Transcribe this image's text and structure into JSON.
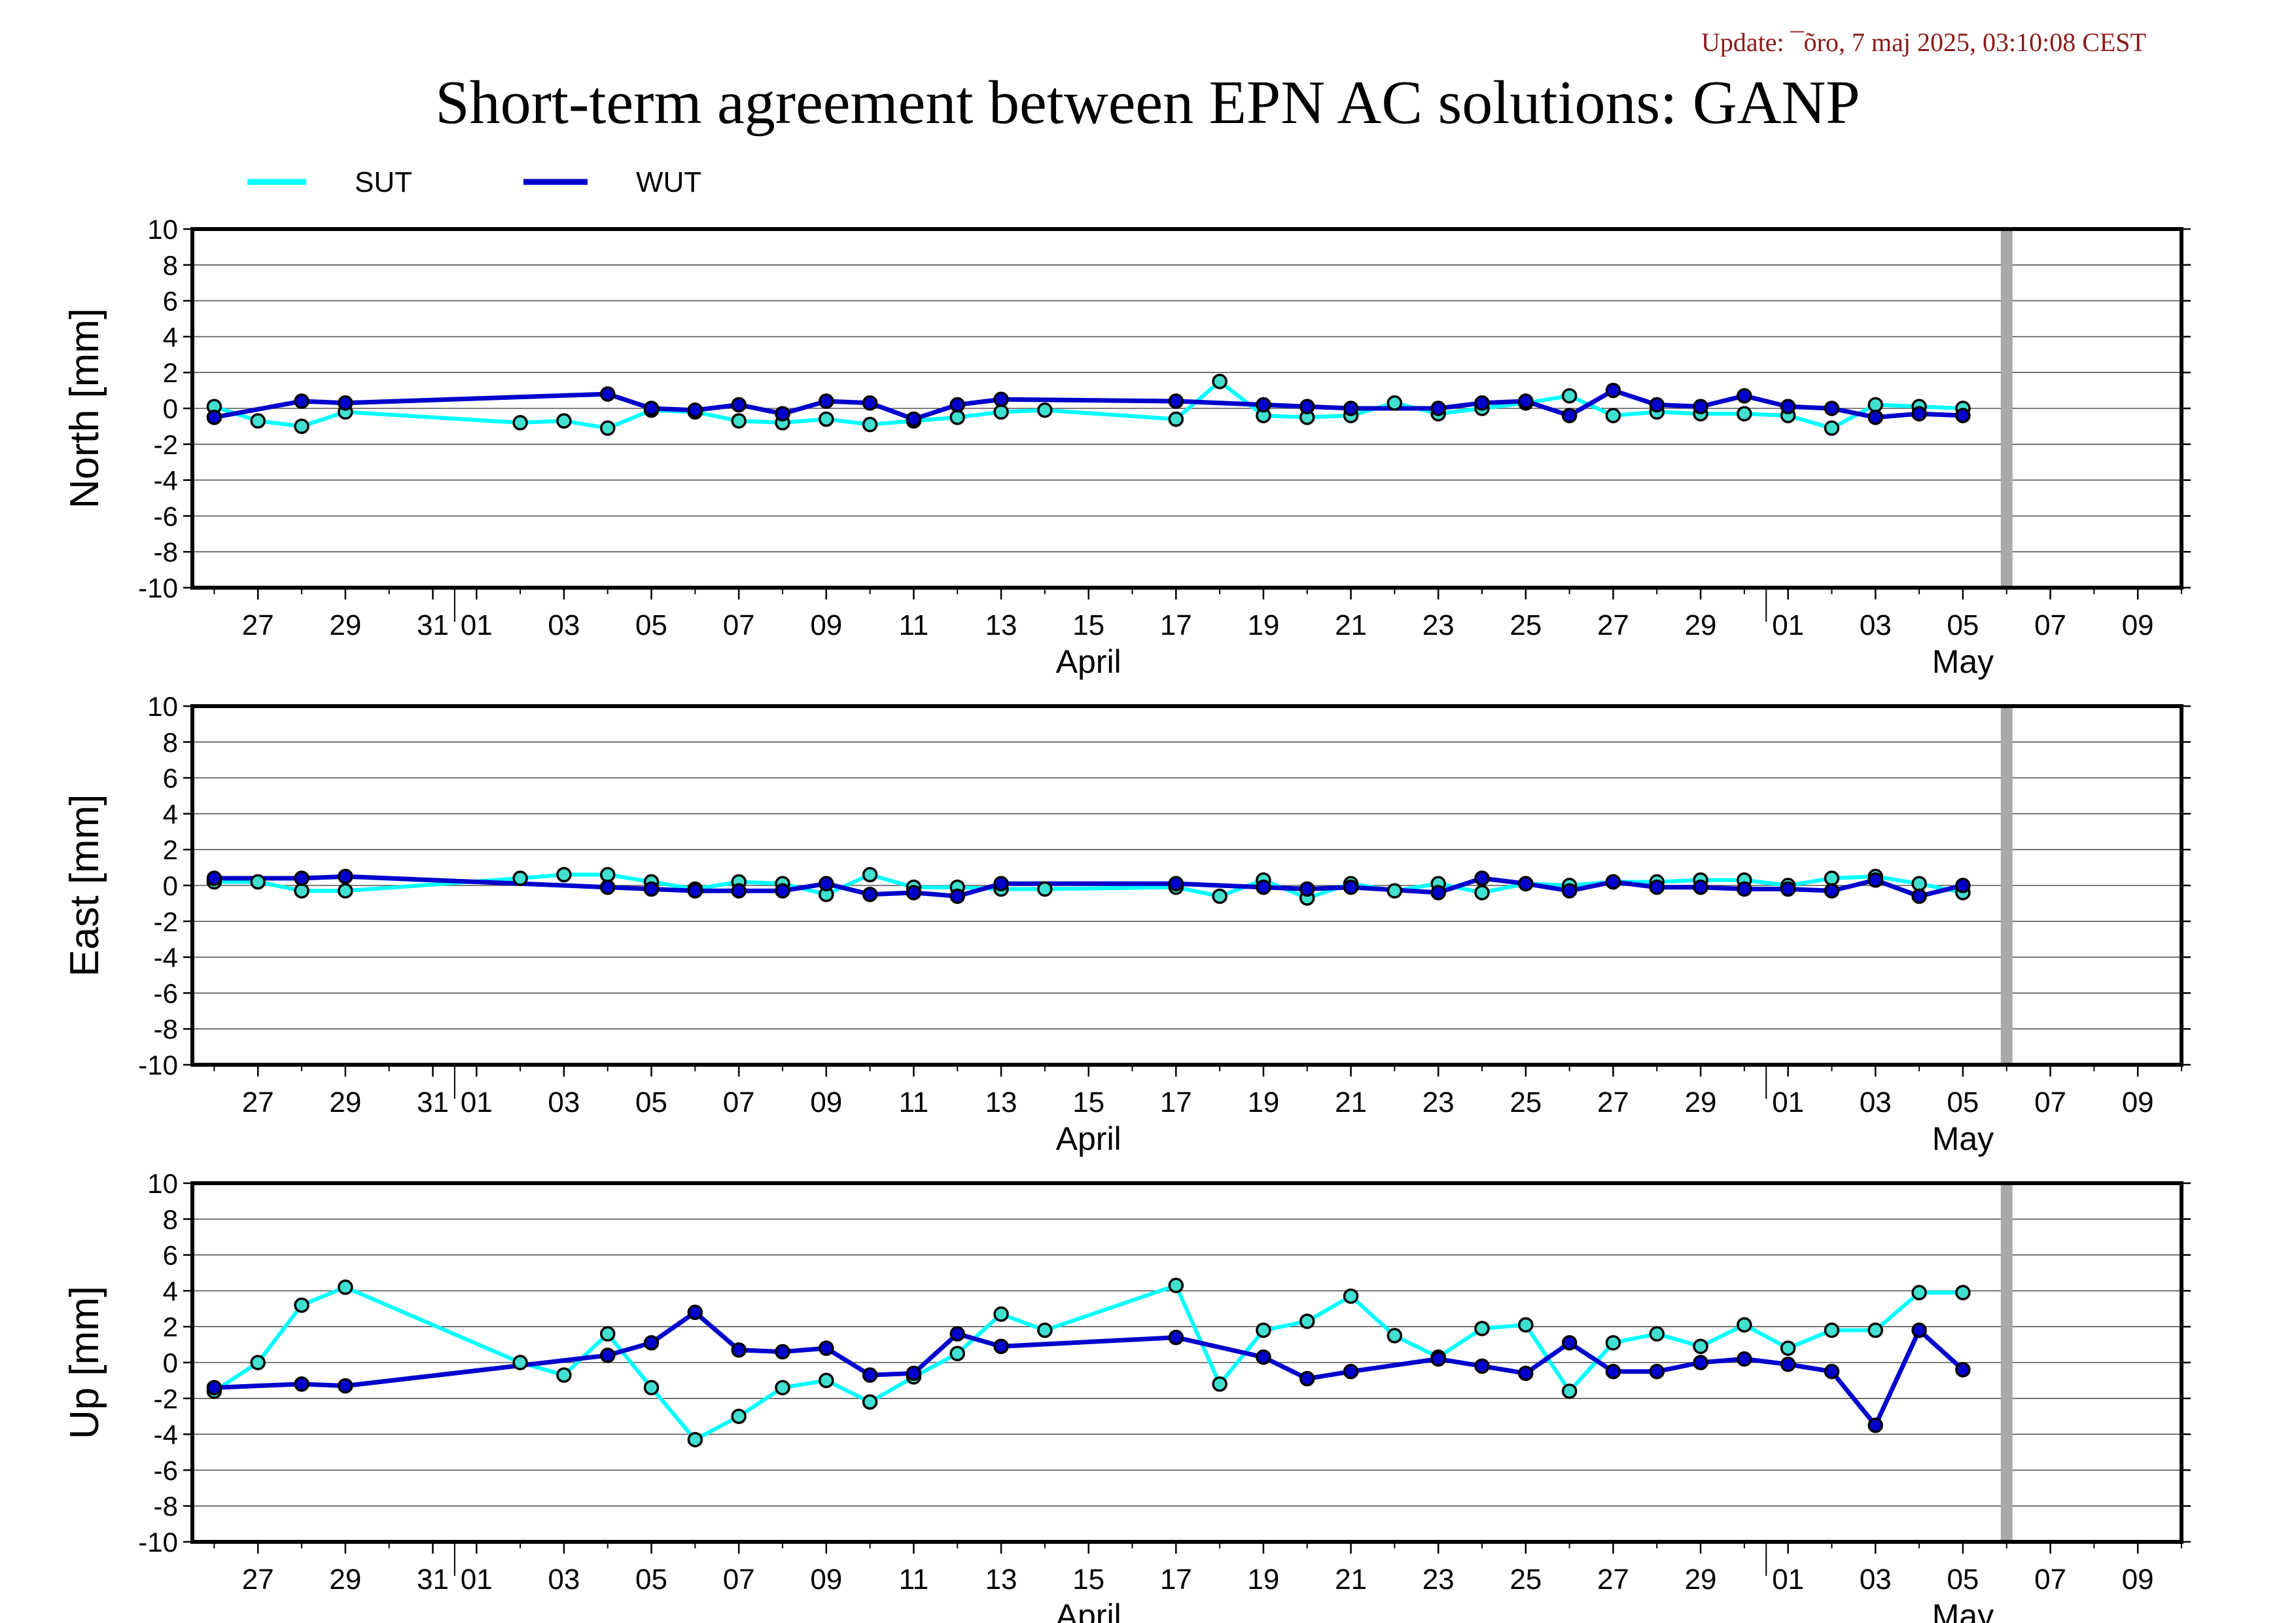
{
  "update": "Update: ¯õro, 7 maj 2025, 03:10:08 CEST",
  "title": "Short-term agreement between EPN AC solutions: GANP",
  "colors": {
    "SUT": "#00ffff",
    "WUT": "#0000cd",
    "marker_fill": "#40e0d0",
    "current_day_bar": "#a9a9a9"
  },
  "chart_data": [
    {
      "type": "line",
      "ylabel": "North [mm]",
      "ylim": [
        -10,
        10
      ],
      "yticks": [
        10,
        8,
        6,
        4,
        2,
        0,
        -2,
        -4,
        -6,
        -8,
        -10
      ],
      "xlim": [
        "2025-03-25T12:00",
        "2025-05-10"
      ],
      "xtick_labels": [
        "27",
        "29",
        "31",
        "01",
        "03",
        "05",
        "07",
        "09",
        "11",
        "13",
        "15",
        "17",
        "19",
        "21",
        "23",
        "25",
        "27",
        "29",
        "01",
        "03",
        "05",
        "07",
        "09"
      ],
      "month_labels": [
        "April",
        "May"
      ],
      "grid": true,
      "current_day": "2025-05-06",
      "series": [
        {
          "name": "SUT",
          "x": [
            "2025-03-26",
            "2025-03-27",
            "2025-03-28",
            "2025-03-29",
            "2025-04-02",
            "2025-04-03",
            "2025-04-04",
            "2025-04-05",
            "2025-04-06",
            "2025-04-07",
            "2025-04-08",
            "2025-04-09",
            "2025-04-10",
            "2025-04-11",
            "2025-04-12",
            "2025-04-13",
            "2025-04-14",
            "2025-04-17",
            "2025-04-18",
            "2025-04-19",
            "2025-04-20",
            "2025-04-21",
            "2025-04-22",
            "2025-04-23",
            "2025-04-24",
            "2025-04-25",
            "2025-04-26",
            "2025-04-27",
            "2025-04-28",
            "2025-04-29",
            "2025-04-30",
            "2025-05-01",
            "2025-05-02",
            "2025-05-03",
            "2025-05-04",
            "2025-05-05"
          ],
          "y": [
            0.1,
            -0.7,
            -1.0,
            -0.2,
            -0.8,
            -0.7,
            -1.1,
            -0.1,
            -0.2,
            -0.7,
            -0.8,
            -0.6,
            -0.9,
            -0.7,
            -0.5,
            -0.2,
            -0.1,
            -0.6,
            1.5,
            -0.4,
            -0.5,
            -0.4,
            0.3,
            -0.3,
            0.0,
            0.3,
            0.7,
            -0.4,
            -0.2,
            -0.3,
            -0.3,
            -0.4,
            -1.1,
            0.2,
            0.1,
            0.0
          ]
        },
        {
          "name": "WUT",
          "x": [
            "2025-03-26",
            "2025-03-28",
            "2025-03-29",
            "2025-04-04",
            "2025-04-05",
            "2025-04-06",
            "2025-04-07",
            "2025-04-08",
            "2025-04-09",
            "2025-04-10",
            "2025-04-11",
            "2025-04-12",
            "2025-04-13",
            "2025-04-17",
            "2025-04-19",
            "2025-04-20",
            "2025-04-21",
            "2025-04-23",
            "2025-04-24",
            "2025-04-25",
            "2025-04-26",
            "2025-04-27",
            "2025-04-28",
            "2025-04-29",
            "2025-04-30",
            "2025-05-01",
            "2025-05-02",
            "2025-05-03",
            "2025-05-04",
            "2025-05-05"
          ],
          "y": [
            -0.5,
            0.4,
            0.3,
            0.8,
            0.0,
            -0.1,
            0.2,
            -0.3,
            0.4,
            0.3,
            -0.6,
            0.2,
            0.5,
            0.4,
            0.2,
            0.1,
            0.0,
            0.0,
            0.3,
            0.4,
            -0.4,
            1.0,
            0.2,
            0.1,
            0.7,
            0.1,
            0.0,
            -0.5,
            -0.3,
            -0.4
          ]
        }
      ]
    },
    {
      "type": "line",
      "ylabel": "East [mm]",
      "ylim": [
        -10,
        10
      ],
      "yticks": [
        10,
        8,
        6,
        4,
        2,
        0,
        -2,
        -4,
        -6,
        -8,
        -10
      ],
      "xlim": [
        "2025-03-25T12:00",
        "2025-05-10"
      ],
      "xtick_labels": [
        "27",
        "29",
        "31",
        "01",
        "03",
        "05",
        "07",
        "09",
        "11",
        "13",
        "15",
        "17",
        "19",
        "21",
        "23",
        "25",
        "27",
        "29",
        "01",
        "03",
        "05",
        "07",
        "09"
      ],
      "month_labels": [
        "April",
        "May"
      ],
      "grid": true,
      "current_day": "2025-05-06",
      "series": [
        {
          "name": "SUT",
          "x": [
            "2025-03-26",
            "2025-03-27",
            "2025-03-28",
            "2025-03-29",
            "2025-04-02",
            "2025-04-03",
            "2025-04-04",
            "2025-04-05",
            "2025-04-06",
            "2025-04-07",
            "2025-04-08",
            "2025-04-09",
            "2025-04-10",
            "2025-04-11",
            "2025-04-12",
            "2025-04-13",
            "2025-04-14",
            "2025-04-17",
            "2025-04-18",
            "2025-04-19",
            "2025-04-20",
            "2025-04-21",
            "2025-04-22",
            "2025-04-23",
            "2025-04-24",
            "2025-04-25",
            "2025-04-26",
            "2025-04-27",
            "2025-04-28",
            "2025-04-29",
            "2025-04-30",
            "2025-05-01",
            "2025-05-02",
            "2025-05-03",
            "2025-05-04",
            "2025-05-05"
          ],
          "y": [
            0.2,
            0.2,
            -0.3,
            -0.3,
            0.4,
            0.6,
            0.6,
            0.2,
            -0.2,
            0.2,
            0.1,
            -0.5,
            0.6,
            -0.1,
            -0.1,
            -0.2,
            -0.2,
            -0.1,
            -0.6,
            0.3,
            -0.7,
            0.1,
            -0.3,
            0.1,
            -0.4,
            0.1,
            0.0,
            0.2,
            0.2,
            0.3,
            0.3,
            0.0,
            0.4,
            0.5,
            0.1,
            -0.4
          ]
        },
        {
          "name": "WUT",
          "x": [
            "2025-03-26",
            "2025-03-28",
            "2025-03-29",
            "2025-04-04",
            "2025-04-05",
            "2025-04-06",
            "2025-04-07",
            "2025-04-08",
            "2025-04-09",
            "2025-04-10",
            "2025-04-11",
            "2025-04-12",
            "2025-04-13",
            "2025-04-17",
            "2025-04-19",
            "2025-04-20",
            "2025-04-21",
            "2025-04-23",
            "2025-04-24",
            "2025-04-25",
            "2025-04-26",
            "2025-04-27",
            "2025-04-28",
            "2025-04-29",
            "2025-04-30",
            "2025-05-01",
            "2025-05-02",
            "2025-05-03",
            "2025-05-04",
            "2025-05-05"
          ],
          "y": [
            0.4,
            0.4,
            0.5,
            -0.1,
            -0.2,
            -0.3,
            -0.3,
            -0.3,
            0.1,
            -0.5,
            -0.4,
            -0.6,
            0.1,
            0.1,
            -0.1,
            -0.2,
            -0.1,
            -0.4,
            0.4,
            0.1,
            -0.3,
            0.2,
            -0.1,
            -0.1,
            -0.2,
            -0.2,
            -0.3,
            0.3,
            -0.6,
            0.0
          ]
        }
      ]
    },
    {
      "type": "line",
      "ylabel": "Up [mm]",
      "ylim": [
        -10,
        10
      ],
      "yticks": [
        10,
        8,
        6,
        4,
        2,
        0,
        -2,
        -4,
        -6,
        -8,
        -10
      ],
      "xlim": [
        "2025-03-25T12:00",
        "2025-05-10"
      ],
      "xtick_labels": [
        "27",
        "29",
        "31",
        "01",
        "03",
        "05",
        "07",
        "09",
        "11",
        "13",
        "15",
        "17",
        "19",
        "21",
        "23",
        "25",
        "27",
        "29",
        "01",
        "03",
        "05",
        "07",
        "09"
      ],
      "month_labels": [
        "April",
        "May"
      ],
      "grid": true,
      "current_day": "2025-05-06",
      "series": [
        {
          "name": "SUT",
          "x": [
            "2025-03-26",
            "2025-03-27",
            "2025-03-28",
            "2025-03-29",
            "2025-04-02",
            "2025-04-03",
            "2025-04-04",
            "2025-04-05",
            "2025-04-06",
            "2025-04-07",
            "2025-04-08",
            "2025-04-09",
            "2025-04-10",
            "2025-04-11",
            "2025-04-12",
            "2025-04-13",
            "2025-04-14",
            "2025-04-17",
            "2025-04-18",
            "2025-04-19",
            "2025-04-20",
            "2025-04-21",
            "2025-04-22",
            "2025-04-23",
            "2025-04-24",
            "2025-04-25",
            "2025-04-26",
            "2025-04-27",
            "2025-04-28",
            "2025-04-29",
            "2025-04-30",
            "2025-05-01",
            "2025-05-02",
            "2025-05-03",
            "2025-05-04",
            "2025-05-05"
          ],
          "y": [
            -1.6,
            0.0,
            3.2,
            4.2,
            0.0,
            -0.7,
            1.6,
            -1.4,
            -4.3,
            -3.0,
            -1.4,
            -1.0,
            -2.2,
            -0.8,
            0.5,
            2.7,
            1.8,
            4.3,
            -1.2,
            1.8,
            2.3,
            3.7,
            1.5,
            0.3,
            1.9,
            2.1,
            -1.6,
            1.1,
            1.6,
            0.9,
            2.1,
            0.8,
            1.8,
            1.8,
            3.9,
            3.9
          ]
        },
        {
          "name": "WUT",
          "x": [
            "2025-03-26",
            "2025-03-28",
            "2025-03-29",
            "2025-04-04",
            "2025-04-05",
            "2025-04-06",
            "2025-04-07",
            "2025-04-08",
            "2025-04-09",
            "2025-04-10",
            "2025-04-11",
            "2025-04-12",
            "2025-04-13",
            "2025-04-17",
            "2025-04-19",
            "2025-04-20",
            "2025-04-21",
            "2025-04-23",
            "2025-04-24",
            "2025-04-25",
            "2025-04-26",
            "2025-04-27",
            "2025-04-28",
            "2025-04-29",
            "2025-04-30",
            "2025-05-01",
            "2025-05-02",
            "2025-05-03",
            "2025-05-04",
            "2025-05-05"
          ],
          "y": [
            -1.4,
            -1.2,
            -1.3,
            0.4,
            1.1,
            2.8,
            0.7,
            0.6,
            0.8,
            -0.7,
            -0.6,
            1.6,
            0.9,
            1.4,
            0.3,
            -0.9,
            -0.5,
            0.2,
            -0.2,
            -0.6,
            1.1,
            -0.5,
            -0.5,
            0.0,
            0.2,
            -0.1,
            -0.5,
            -3.5,
            1.8,
            -0.4
          ]
        }
      ]
    }
  ]
}
